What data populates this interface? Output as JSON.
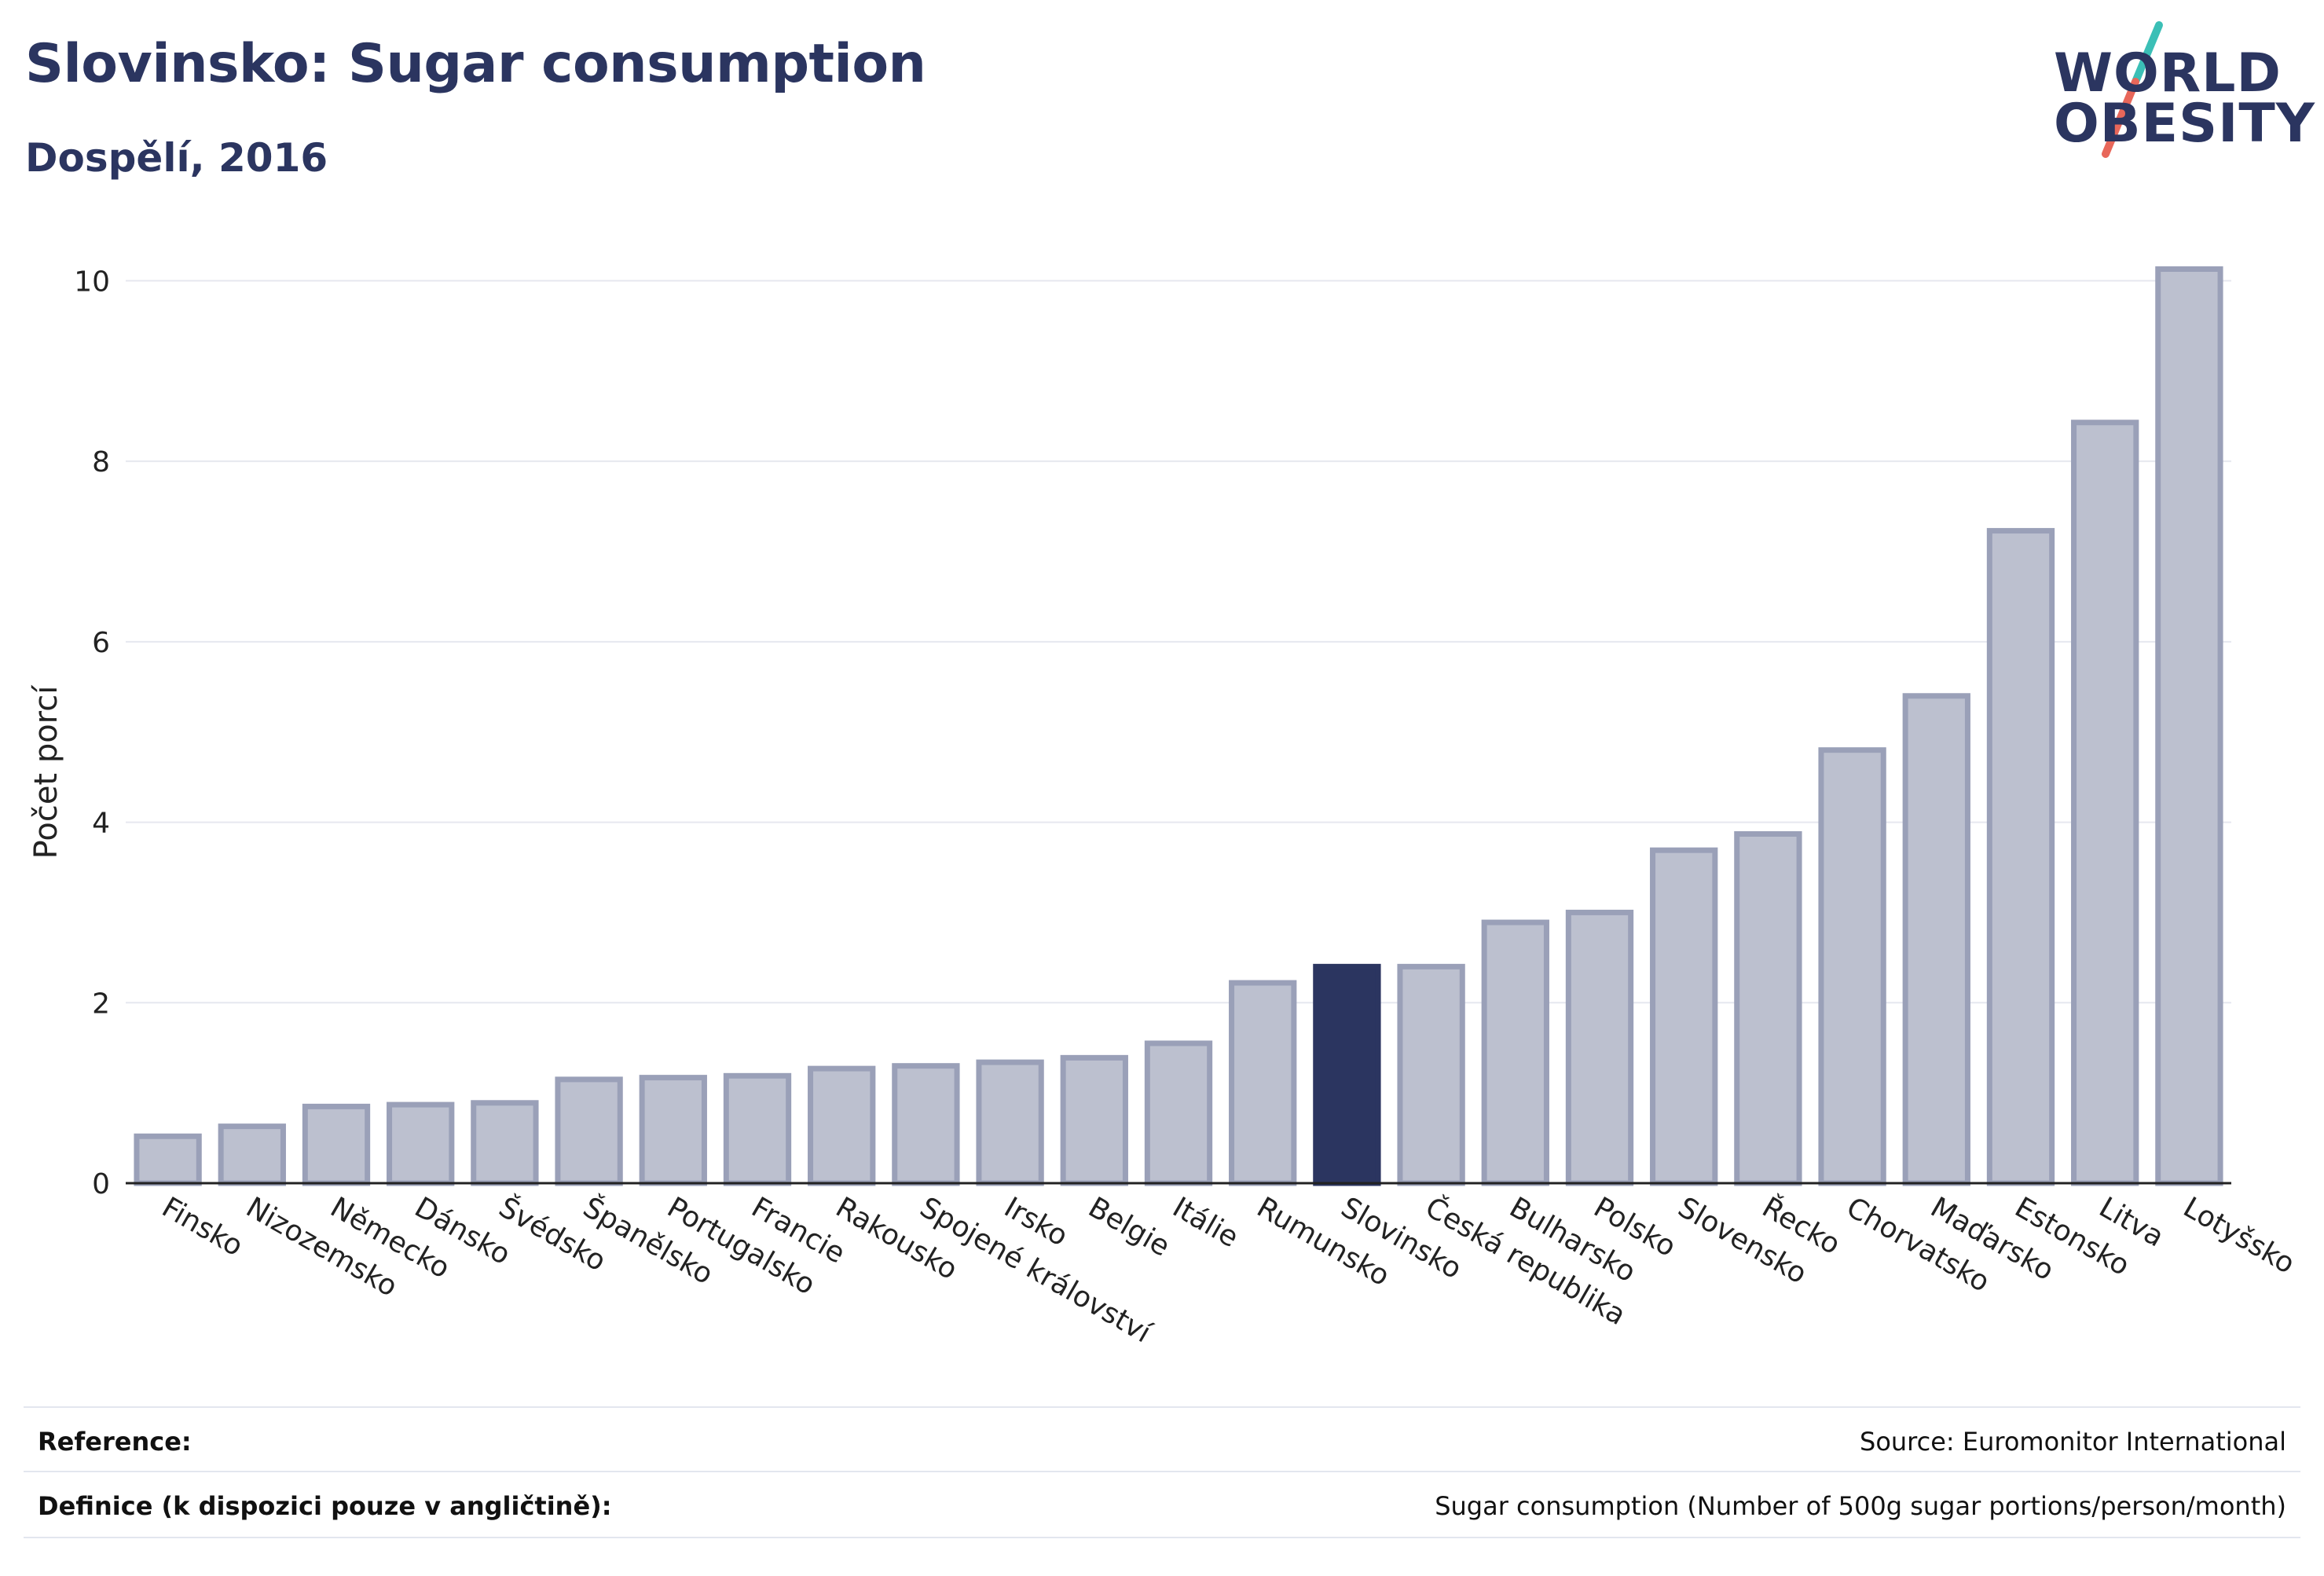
{
  "header": {
    "title": "Slovinsko: Sugar consumption",
    "subtitle": "Dospělí, 2016"
  },
  "logo": {
    "line1": "WORLD",
    "line2": "OBESITY",
    "accent_teal": "#3bbfb6",
    "accent_red": "#e8675a"
  },
  "chart_data": {
    "type": "bar",
    "ylabel": "Počet porcí",
    "ylim": [
      0,
      10.5
    ],
    "yticks": [
      0,
      2,
      4,
      6,
      8,
      10
    ],
    "grid": true,
    "highlight": "Slovinsko",
    "colors": {
      "bar": "#bcc0cf",
      "bar_edge": "#9aa0b8",
      "highlight": "#2b3560"
    },
    "categories": [
      "Finsko",
      "Nizozemsko",
      "Německo",
      "Dánsko",
      "Švédsko",
      "Španělsko",
      "Portugalsko",
      "Francie",
      "Rakousko",
      "Spojené království",
      "Irsko",
      "Belgie",
      "Itálie",
      "Rumunsko",
      "Slovinsko",
      "Česká republika",
      "Bulharsko",
      "Polsko",
      "Slovensko",
      "Řecko",
      "Chorvatsko",
      "Maďarsko",
      "Estonsko",
      "Litva",
      "Lotyšsko"
    ],
    "values": [
      0.52,
      0.63,
      0.85,
      0.87,
      0.89,
      1.15,
      1.17,
      1.19,
      1.27,
      1.3,
      1.34,
      1.39,
      1.55,
      2.22,
      2.4,
      2.4,
      2.89,
      3.0,
      3.69,
      3.87,
      4.8,
      5.4,
      7.23,
      8.43,
      10.13
    ]
  },
  "footer": {
    "reference_label": "Reference:",
    "reference_value": "Source: Euromonitor International",
    "definition_label": "Definice (k dispozici pouze v angličtině):",
    "definition_value": "Sugar consumption (Number of 500g sugar portions/person/month)"
  }
}
